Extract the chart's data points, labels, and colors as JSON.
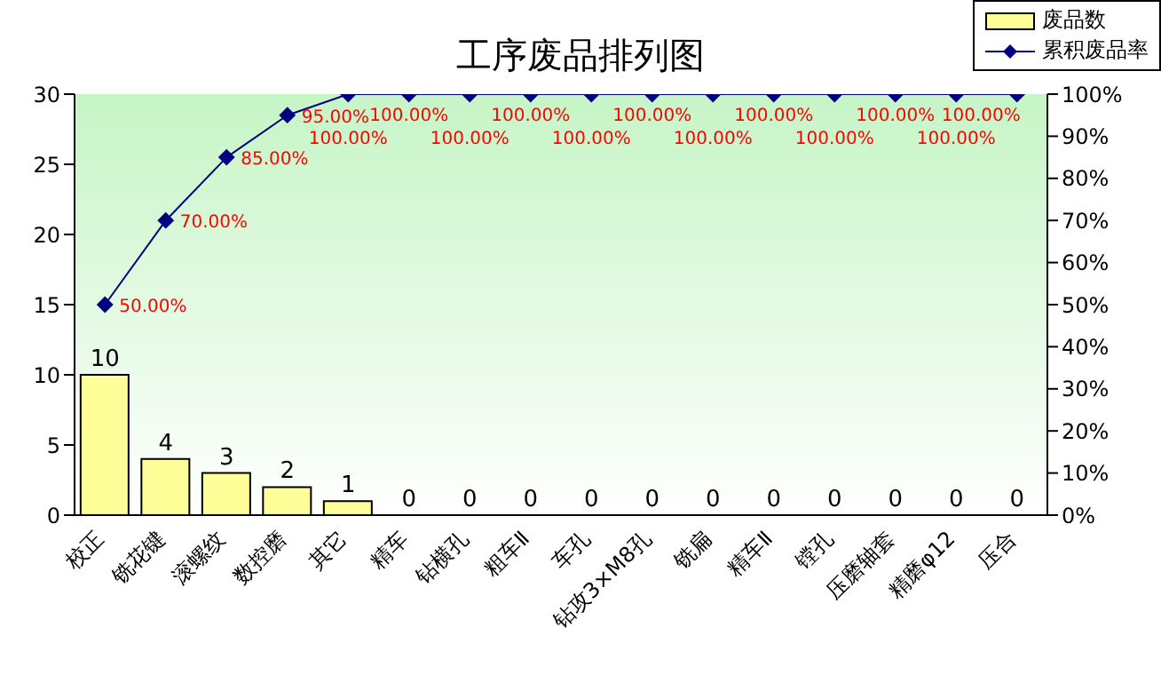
{
  "chart_data": {
    "type": "bar",
    "title": "工序废品排列图",
    "categories": [
      "校正",
      "铣花键",
      "滚螺纹",
      "数控磨",
      "其它",
      "精车",
      "钻横孔",
      "粗车Ⅱ",
      "车孔",
      "钻攻3×M8孔",
      "铣扁",
      "精车Ⅱ",
      "镗孔",
      "压磨轴套",
      "精磨φ12",
      "压合"
    ],
    "series": [
      {
        "name": "废品数",
        "color": "#ffff99",
        "values": [
          10,
          4,
          3,
          2,
          1,
          0,
          0,
          0,
          0,
          0,
          0,
          0,
          0,
          0,
          0,
          0
        ],
        "data_labels": true
      },
      {
        "name": "累积废品率",
        "type": "line",
        "axis": "y2",
        "color": "#000080",
        "marker": "diamond",
        "values": [
          50,
          70,
          85,
          95,
          100,
          100,
          100,
          100,
          100,
          100,
          100,
          100,
          100,
          100,
          100,
          100
        ],
        "value_labels": [
          "50.00%",
          "70.00%",
          "85.00%",
          "95.00%",
          "100.00%",
          "100.00%",
          "100.00%",
          "100.00%",
          "100.00%",
          "100.00%",
          "100.00%",
          "100.00%",
          "100.00%",
          "100.00%",
          "100.00%",
          "100.00%"
        ]
      }
    ],
    "ylim": [
      0,
      30
    ],
    "yticks": [
      0,
      5,
      10,
      15,
      20,
      25,
      30
    ],
    "y2lim": [
      0,
      100
    ],
    "y2ticks": [
      {
        "value": 0,
        "label": "0%"
      },
      {
        "value": 10,
        "label": "10%"
      },
      {
        "value": 20,
        "label": "20%"
      },
      {
        "value": 30,
        "label": "30%"
      },
      {
        "value": 40,
        "label": "40%"
      },
      {
        "value": 50,
        "label": "50%"
      },
      {
        "value": 60,
        "label": "60%"
      },
      {
        "value": 70,
        "label": "70%"
      },
      {
        "value": 80,
        "label": "80%"
      },
      {
        "value": 90,
        "label": "90%"
      },
      {
        "value": 100,
        "label": "100%"
      }
    ],
    "grid": false,
    "legend": "top right"
  }
}
